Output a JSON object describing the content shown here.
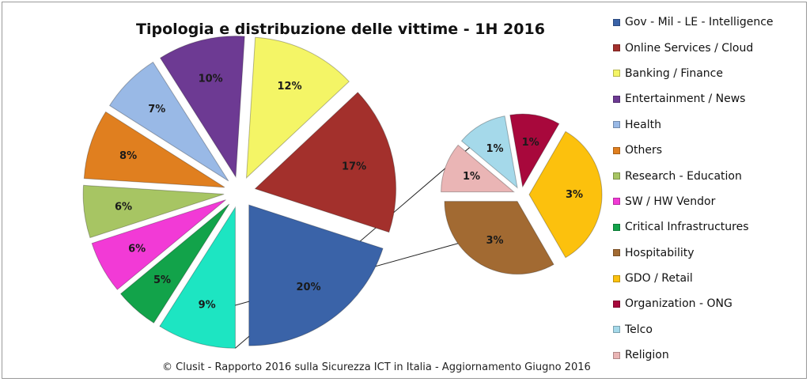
{
  "chart_data": {
    "type": "pie",
    "title": "Tipologia  e distribuzione delle vittime - 1H 2016",
    "footer": "© Clusit - Rapporto 2016 sulla Sicurezza ICT in Italia - Aggiornamento Giugno 2016",
    "legend_position": "right",
    "slices": [
      {
        "name": "Gov - Mil - LE - Intelligence",
        "label": "20%",
        "value": 20,
        "color": "#3a63a8"
      },
      {
        "name": "Online Services / Cloud",
        "label": "17%",
        "value": 17,
        "color": "#a3302c"
      },
      {
        "name": "Banking / Finance",
        "label": "12%",
        "value": 12,
        "color": "#f4f566"
      },
      {
        "name": "Entertainment / News",
        "label": "10%",
        "value": 10,
        "color": "#6d3a93"
      },
      {
        "name": "Health",
        "label": "7%",
        "value": 7,
        "color": "#99b9e6"
      },
      {
        "name": "Others",
        "label": "8%",
        "value": 8,
        "color": "#e07f1f"
      },
      {
        "name": "Research - Education",
        "label": "6%",
        "value": 6,
        "color": "#a7c563"
      },
      {
        "name": "SW / HW Vendor",
        "label": "6%",
        "value": 6,
        "color": "#f23ad6"
      },
      {
        "name": "Critical Infrastructures",
        "label": "5%",
        "value": 5,
        "color": "#12a34a"
      },
      {
        "name": "Hospitability",
        "label": "3%",
        "value": 3,
        "color": "#a26a32"
      },
      {
        "name": "GDO / Retail",
        "label": "3%",
        "value": 3,
        "color": "#fcc10d"
      },
      {
        "name": "Organization - ONG",
        "label": "1%",
        "value": 1,
        "color": "#a8083c"
      },
      {
        "name": "Telco",
        "label": "1%",
        "value": 1,
        "color": "#a5d9ea"
      },
      {
        "name": "Religion",
        "label": "1%",
        "value": 1,
        "color": "#eab5b5"
      }
    ],
    "main_order": [
      "Gov - Mil - LE - Intelligence",
      "Online Services / Cloud",
      "Banking / Finance",
      "Entertainment / News",
      "Health",
      "Others",
      "Research - Education",
      "SW / HW Vendor",
      "Critical Infrastructures"
    ],
    "pie_of_pie": {
      "aggregate_label": "9%",
      "aggregate_value": 9,
      "aggregate_color": "#1de5c2",
      "secondary_order": [
        "Hospitability",
        "GDO / Retail",
        "Organization - ONG",
        "Telco",
        "Religion"
      ]
    }
  }
}
